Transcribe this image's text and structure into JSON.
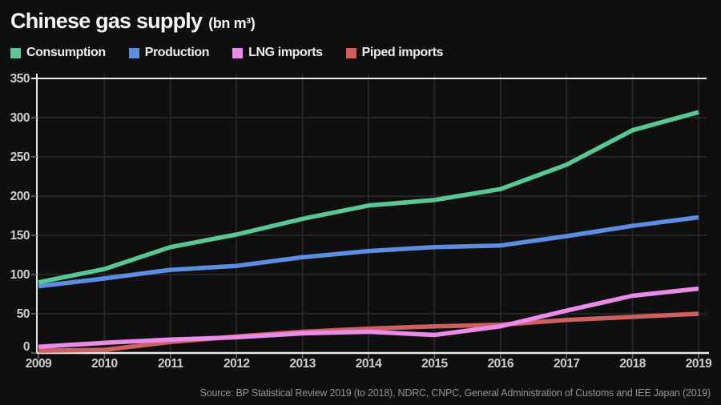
{
  "header": {
    "title": "Chinese gas supply",
    "unit": "(bn m³)"
  },
  "chart_data": {
    "type": "line",
    "title": "Chinese gas supply (bn m³)",
    "xlabel": "",
    "ylabel": "",
    "x": [
      "2009",
      "2010",
      "2011",
      "2012",
      "2013",
      "2014",
      "2015",
      "2016",
      "2017",
      "2018",
      "2019"
    ],
    "ylim": [
      0,
      350
    ],
    "yticks": [
      0,
      50,
      100,
      150,
      200,
      250,
      300,
      350
    ],
    "grid": true,
    "legend_position": "top",
    "series": [
      {
        "name": "Consumption",
        "color": "#58c795",
        "values": [
          90,
          107,
          135,
          151,
          171,
          188,
          195,
          209,
          240,
          284,
          307
        ]
      },
      {
        "name": "Production",
        "color": "#5b8ee0",
        "values": [
          85,
          95,
          106,
          111,
          122,
          130,
          135,
          137,
          149,
          162,
          173
        ]
      },
      {
        "name": "LNG imports",
        "color": "#e98be9",
        "values": [
          8,
          13,
          17,
          20,
          25,
          27,
          23,
          34,
          54,
          73,
          82
        ]
      },
      {
        "name": "Piped imports",
        "color": "#cd6060",
        "values": [
          3,
          4,
          14,
          21,
          27,
          31,
          34,
          36,
          42,
          46,
          50
        ]
      }
    ]
  },
  "footer": {
    "source": "Source: BP Statistical Review 2019 (to 2018), NDRC, CNPC, General Administration of Customs and IEE Japan (2019)"
  }
}
